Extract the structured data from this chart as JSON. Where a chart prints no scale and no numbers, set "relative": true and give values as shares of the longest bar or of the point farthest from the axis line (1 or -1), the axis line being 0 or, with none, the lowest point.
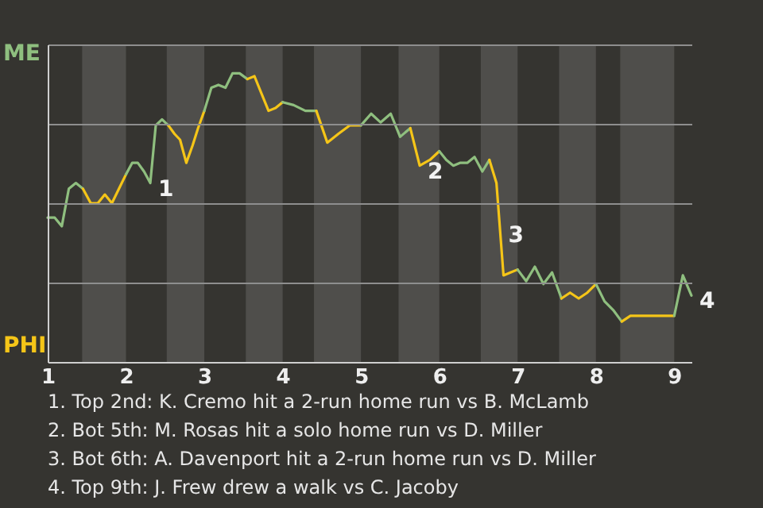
{
  "chart_data": {
    "type": "line",
    "relative": true,
    "series": [
      {
        "name": "ME",
        "color": "#8fbf7f",
        "x": [
          1,
          1.09,
          1.18,
          1.27,
          1.36,
          1.45
        ],
        "values": [
          0.5,
          0.5,
          0.47,
          0.6,
          0.62,
          0.6
        ]
      },
      {
        "name": "PHI",
        "color": "#f5c518",
        "x": [
          1.45,
          1.55,
          1.64,
          1.73,
          1.82,
          1.91,
          2
        ],
        "values": [
          0.6,
          0.55,
          0.55,
          0.58,
          0.55,
          0.6,
          0.65
        ]
      },
      {
        "color": "#8fbf7f",
        "x": [
          2,
          2.08,
          2.15,
          2.23,
          2.31,
          2.38,
          2.46,
          2.54
        ],
        "values": [
          0.65,
          0.69,
          0.69,
          0.66,
          0.62,
          0.82,
          0.84,
          0.82
        ]
      },
      {
        "color": "#f5c518",
        "x": [
          2.54,
          2.62,
          2.69,
          2.77,
          2.85,
          2.92,
          3
        ],
        "values": [
          0.82,
          0.79,
          0.77,
          0.69,
          0.75,
          0.81,
          0.87
        ]
      },
      {
        "color": "#8fbf7f",
        "x": [
          3,
          3.09,
          3.18,
          3.27,
          3.36,
          3.45,
          3.55
        ],
        "values": [
          0.87,
          0.95,
          0.96,
          0.95,
          1,
          1,
          0.98
        ]
      },
      {
        "color": "#f5c518",
        "x": [
          3.55,
          3.64,
          3.73,
          3.82,
          3.91,
          4
        ],
        "values": [
          0.98,
          0.99,
          0.93,
          0.87,
          0.88,
          0.9
        ]
      },
      {
        "color": "#8fbf7f",
        "x": [
          4,
          4.14,
          4.29,
          4.43
        ],
        "values": [
          0.9,
          0.89,
          0.87,
          0.87
        ]
      },
      {
        "color": "#f5c518",
        "x": [
          4.43,
          4.57,
          4.71,
          4.86,
          5
        ],
        "values": [
          0.87,
          0.76,
          0.79,
          0.82,
          0.82
        ]
      },
      {
        "color": "#8fbf7f",
        "x": [
          5,
          5.13,
          5.25,
          5.38,
          5.5,
          5.63
        ],
        "values": [
          0.82,
          0.86,
          0.83,
          0.86,
          0.78,
          0.81
        ]
      },
      {
        "color": "#f5c518",
        "x": [
          5.63,
          5.75,
          5.88,
          6
        ],
        "values": [
          0.81,
          0.68,
          0.7,
          0.73
        ]
      },
      {
        "color": "#8fbf7f",
        "x": [
          6,
          6.09,
          6.18,
          6.27,
          6.36,
          6.45,
          6.55,
          6.64
        ],
        "values": [
          0.73,
          0.7,
          0.68,
          0.69,
          0.69,
          0.71,
          0.66,
          0.7
        ]
      },
      {
        "color": "#f5c518",
        "x": [
          6.64,
          6.73,
          6.82,
          6.91,
          7
        ],
        "values": [
          0.7,
          0.62,
          0.3,
          0.31,
          0.32
        ]
      },
      {
        "color": "#8fbf7f",
        "x": [
          7,
          7.11,
          7.22,
          7.33,
          7.44,
          7.56
        ],
        "values": [
          0.32,
          0.28,
          0.33,
          0.27,
          0.31,
          0.22
        ]
      },
      {
        "color": "#f5c518",
        "x": [
          7.56,
          7.67,
          7.78,
          7.89,
          8
        ],
        "values": [
          0.22,
          0.24,
          0.22,
          0.24,
          0.27
        ]
      },
      {
        "color": "#8fbf7f",
        "x": [
          8,
          8.11,
          8.22,
          8.33
        ],
        "values": [
          0.27,
          0.21,
          0.18,
          0.14
        ]
      },
      {
        "color": "#f5c518",
        "x": [
          8.33,
          8.44,
          8.56,
          8.67,
          8.78,
          8.89,
          9
        ],
        "values": [
          0.14,
          0.16,
          0.16,
          0.16,
          0.16,
          0.16,
          0.16
        ]
      },
      {
        "color": "#8fbf7f",
        "x": [
          9,
          9.11,
          9.22
        ],
        "values": [
          0.16,
          0.3,
          0.23
        ]
      }
    ],
    "xlim": [
      1,
      9.22
    ],
    "xticks": [
      1,
      2,
      3,
      4,
      5,
      6,
      7,
      8,
      9
    ],
    "grid": "y",
    "line_style": "solid",
    "bands": [
      {
        "axis": "x",
        "from": 1.44,
        "to": 2,
        "color": "#4f4e4b"
      },
      {
        "axis": "x",
        "from": 2.52,
        "to": 3,
        "color": "#4f4e4b"
      },
      {
        "axis": "x",
        "from": 3.53,
        "to": 4,
        "color": "#4f4e4b"
      },
      {
        "axis": "x",
        "from": 4.4,
        "to": 5,
        "color": "#4f4e4b"
      },
      {
        "axis": "x",
        "from": 5.48,
        "to": 6,
        "color": "#4f4e4b"
      },
      {
        "axis": "x",
        "from": 6.53,
        "to": 7,
        "color": "#4f4e4b"
      },
      {
        "axis": "x",
        "from": 7.53,
        "to": 8,
        "color": "#4f4e4b"
      },
      {
        "axis": "x",
        "from": 8.31,
        "to": 9,
        "color": "#4f4e4b"
      }
    ],
    "annotations": [
      {
        "text": "1",
        "x": 2.31,
        "y": 0.62
      },
      {
        "text": "2",
        "x": 5.75,
        "y": 0.68
      },
      {
        "text": "3",
        "x": 6.78,
        "y": 0.46
      },
      {
        "text": "4",
        "x": 9.22,
        "y": 0.23
      },
      "1. Top 2nd: K. Cremo hit a 2-run home run vs B. McLamb",
      "2. Bot 5th: M. Rosas hit a solo home run vs D. Miller",
      "3. Bot 6th: A. Davenport hit a 2-run home run vs D. Miller",
      "4. Top 9th: J. Frew drew a walk vs C. Jacoby"
    ]
  }
}
